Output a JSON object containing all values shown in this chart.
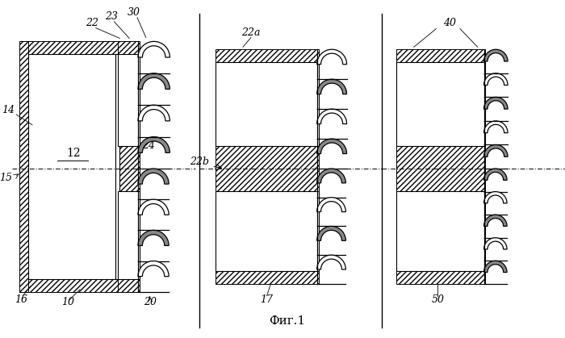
{
  "bg_color": "#ffffff",
  "line_color": "#000000",
  "title": "Фиг.1",
  "title_fontsize": 11,
  "label_fontsize": 9
}
